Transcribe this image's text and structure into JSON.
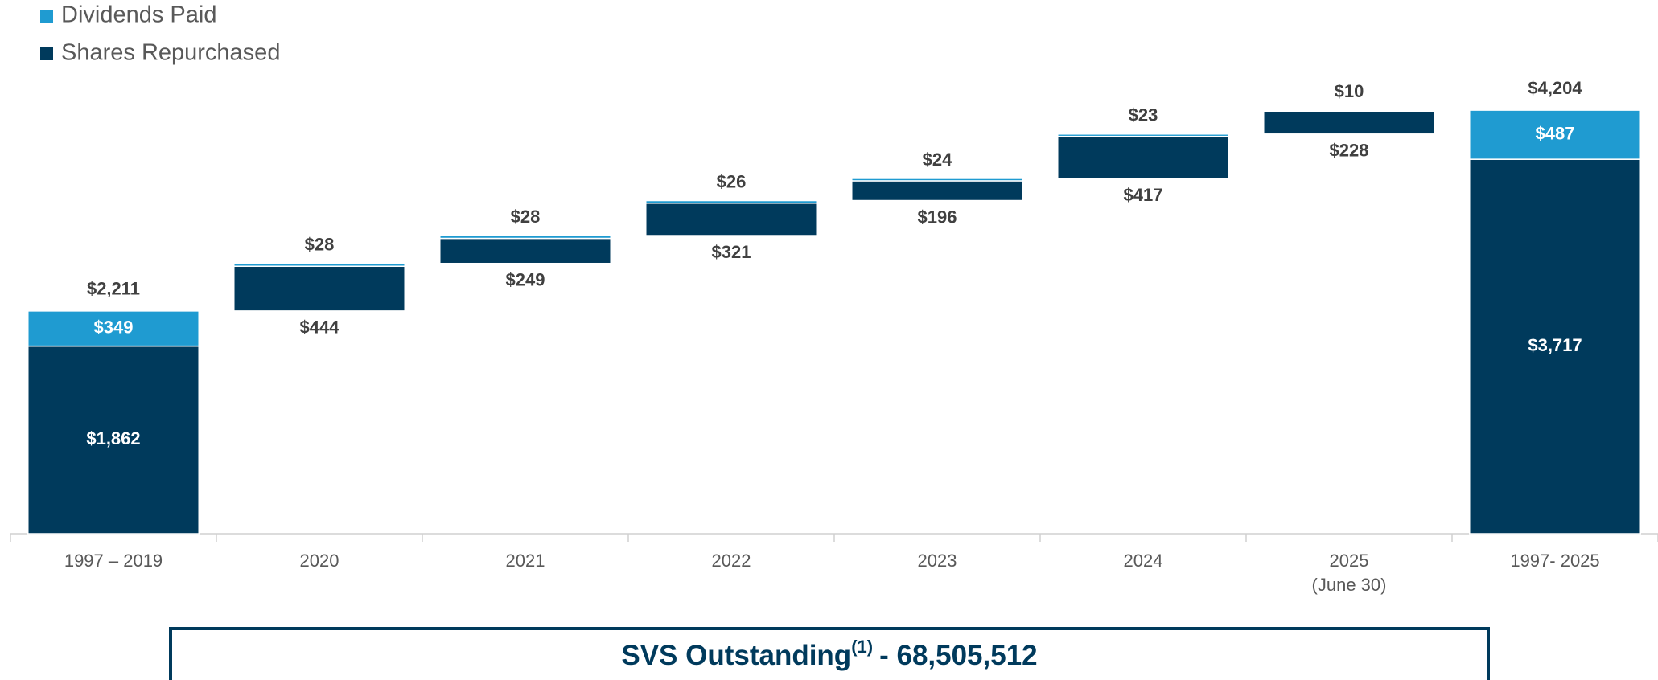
{
  "chart_data": {
    "type": "waterfall",
    "categories": [
      "1997 – 2019",
      "2020",
      "2021",
      "2022",
      "2023",
      "2024",
      "2025\n(June 30)",
      "1997- 2025"
    ],
    "series": [
      {
        "name": "Dividends Paid",
        "color": "#1f9bd1",
        "values": [
          349,
          28,
          28,
          26,
          24,
          23,
          10,
          487
        ],
        "value_labels": [
          "$349",
          "$28",
          "$28",
          "$26",
          "$24",
          "$23",
          "$10",
          "$487"
        ]
      },
      {
        "name": "Shares Repurchased",
        "color": "#003a5c",
        "values": [
          1862,
          444,
          249,
          321,
          196,
          417,
          228,
          3717
        ],
        "value_labels": [
          "$1,862",
          "$444",
          "$249",
          "$321",
          "$196",
          "$417",
          "$228",
          "$3,717"
        ]
      }
    ],
    "total_values": [
      2211,
      4204
    ],
    "total_labels": [
      "$2,211",
      "$4,204"
    ],
    "ylim": [
      0,
      4500
    ],
    "legend": "top-left"
  },
  "footer": {
    "label": "SVS Outstanding",
    "note": "(1)",
    "value_text": "- 68,505,512"
  }
}
